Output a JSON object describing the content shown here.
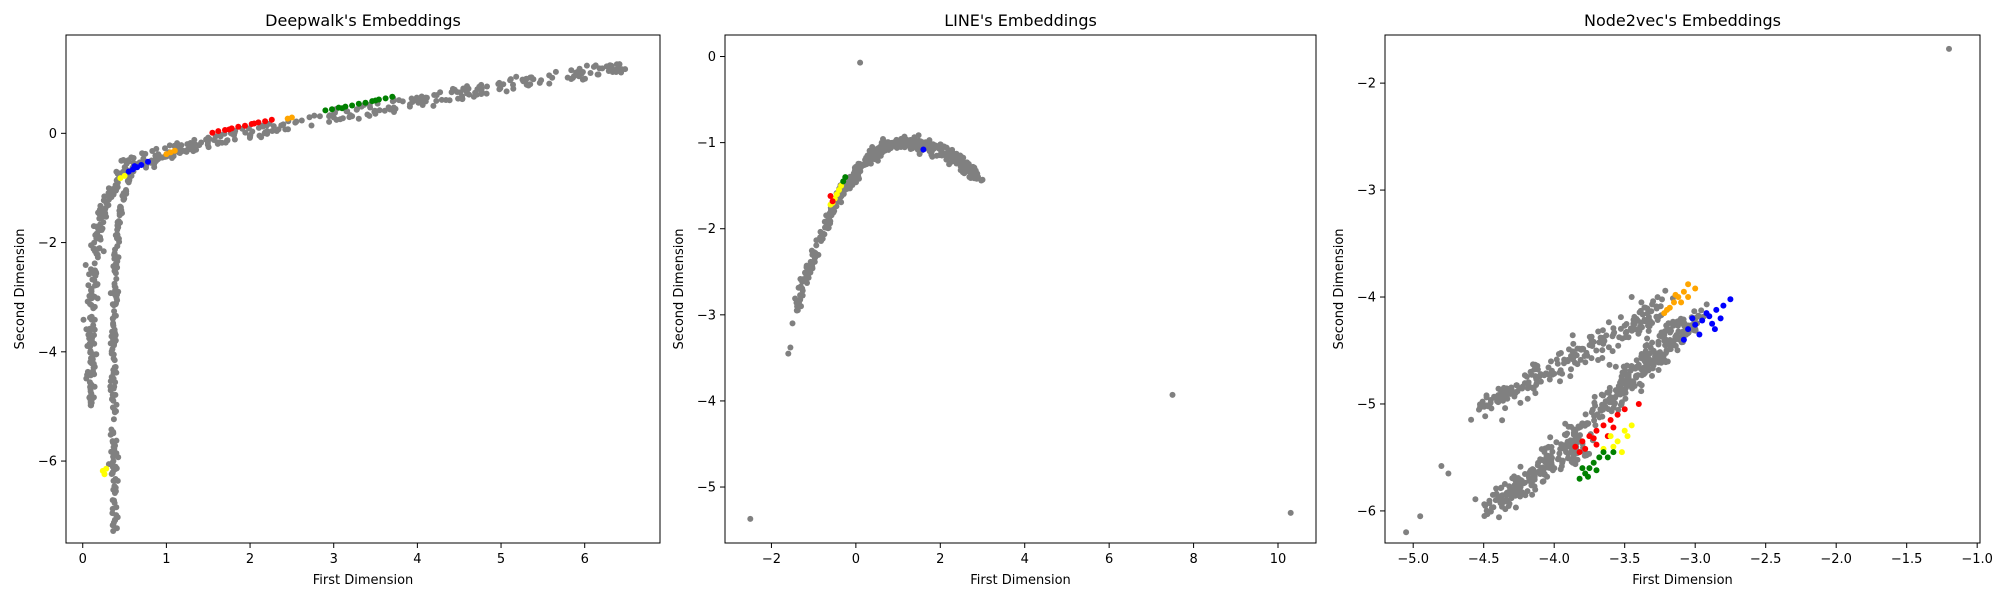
{
  "chart_data": [
    {
      "type": "scatter",
      "title": "Deepwalk's Embeddings",
      "xlabel": "First Dimension",
      "ylabel": "Second Dimension",
      "xlim": [
        -0.2,
        6.9
      ],
      "ylim": [
        -7.5,
        1.8
      ],
      "xticks": [
        0,
        1,
        2,
        3,
        4,
        5,
        6
      ],
      "yticks": [
        -6,
        -4,
        -2,
        0
      ],
      "grid": false,
      "series": [
        {
          "color": "#808080",
          "shape": "deepwalk-gray"
        },
        {
          "color": "#ff0000",
          "points": [
            [
              1.55,
              0.01
            ],
            [
              1.62,
              0.04
            ],
            [
              1.7,
              0.06
            ],
            [
              1.78,
              0.09
            ],
            [
              1.86,
              0.12
            ],
            [
              1.94,
              0.14
            ],
            [
              2.02,
              0.17
            ],
            [
              2.1,
              0.2
            ],
            [
              2.18,
              0.22
            ],
            [
              2.26,
              0.25
            ],
            [
              1.75,
              0.07
            ],
            [
              2.05,
              0.18
            ]
          ]
        },
        {
          "color": "#008000",
          "points": [
            [
              2.9,
              0.42
            ],
            [
              2.98,
              0.44
            ],
            [
              3.06,
              0.47
            ],
            [
              3.14,
              0.49
            ],
            [
              3.22,
              0.51
            ],
            [
              3.3,
              0.54
            ],
            [
              3.38,
              0.56
            ],
            [
              3.46,
              0.59
            ],
            [
              3.54,
              0.62
            ],
            [
              3.62,
              0.64
            ],
            [
              3.7,
              0.67
            ],
            [
              3.1,
              0.46
            ],
            [
              3.5,
              0.6
            ]
          ]
        },
        {
          "color": "#0000ff",
          "points": [
            [
              0.55,
              -0.7
            ],
            [
              0.6,
              -0.66
            ],
            [
              0.65,
              -0.62
            ],
            [
              0.7,
              -0.58
            ],
            [
              0.78,
              -0.52
            ],
            [
              0.62,
              -0.6
            ]
          ]
        },
        {
          "color": "#ffa500",
          "points": [
            [
              1.0,
              -0.38
            ],
            [
              1.05,
              -0.35
            ],
            [
              1.1,
              -0.32
            ],
            [
              2.45,
              0.27
            ],
            [
              2.5,
              0.29
            ]
          ]
        },
        {
          "color": "#ffff00",
          "points": [
            [
              0.24,
              -6.18
            ],
            [
              0.26,
              -6.24
            ],
            [
              0.28,
              -6.14
            ],
            [
              0.5,
              -0.78
            ],
            [
              0.45,
              -0.82
            ]
          ]
        }
      ]
    },
    {
      "type": "scatter",
      "title": "LINE's Embeddings",
      "xlabel": "First Dimension",
      "ylabel": "Second Dimension",
      "xlim": [
        -3.1,
        10.9
      ],
      "ylim": [
        -5.65,
        0.25
      ],
      "xticks": [
        -2,
        0,
        2,
        4,
        6,
        8,
        10
      ],
      "yticks": [
        -5,
        -4,
        -3,
        -2,
        -1,
        0
      ],
      "grid": false,
      "series": [
        {
          "color": "#808080",
          "shape": "line-gray",
          "outliers": [
            [
              0.1,
              -0.07
            ],
            [
              -2.5,
              -5.37
            ],
            [
              7.5,
              -3.93
            ],
            [
              10.3,
              -5.3
            ],
            [
              -1.6,
              -3.45
            ],
            [
              -1.55,
              -3.38
            ],
            [
              -1.4,
              -2.95
            ],
            [
              -1.3,
              -2.9
            ],
            [
              -1.5,
              -3.1
            ],
            [
              3.0,
              -1.43
            ]
          ]
        },
        {
          "color": "#ffff00",
          "points": [
            [
              -0.5,
              -1.65
            ],
            [
              -0.45,
              -1.6
            ],
            [
              -0.55,
              -1.7
            ],
            [
              -0.4,
              -1.55
            ],
            [
              -0.35,
              -1.5
            ],
            [
              -0.6,
              -1.72
            ]
          ]
        },
        {
          "color": "#ff0000",
          "points": [
            [
              -0.55,
              -1.68
            ],
            [
              -0.6,
              -1.62
            ]
          ]
        },
        {
          "color": "#008000",
          "points": [
            [
              -0.3,
              -1.45
            ],
            [
              -0.25,
              -1.4
            ]
          ]
        },
        {
          "color": "#0000ff",
          "points": [
            [
              1.6,
              -1.08
            ]
          ]
        }
      ]
    },
    {
      "type": "scatter",
      "title": "Node2vec's Embeddings",
      "xlabel": "First Dimension",
      "ylabel": "Second Dimension",
      "xlim": [
        -5.2,
        -0.98
      ],
      "ylim": [
        -6.3,
        -1.55
      ],
      "xticks": [
        -5.0,
        -4.5,
        -4.0,
        -3.5,
        -3.0,
        -2.5,
        -2.0,
        -1.5,
        -1.0
      ],
      "xticklabels": [
        "−5.0",
        "−4.5",
        "−4.0",
        "−3.5",
        "−3.0",
        "−2.5",
        "−2.0",
        "−1.5",
        "−1.0"
      ],
      "yticks": [
        -6,
        -5,
        -4,
        -3,
        -2
      ],
      "grid": false,
      "series": [
        {
          "color": "#808080",
          "shape": "node2vec-gray",
          "outliers": [
            [
              -1.2,
              -1.68
            ],
            [
              -5.05,
              -6.2
            ],
            [
              -4.95,
              -6.05
            ],
            [
              -4.75,
              -5.65
            ],
            [
              -4.8,
              -5.58
            ],
            [
              -3.45,
              -4.0
            ],
            [
              -3.35,
              -4.1
            ]
          ]
        },
        {
          "color": "#ffa500",
          "points": [
            [
              -3.05,
              -3.88
            ],
            [
              -3.08,
              -3.95
            ],
            [
              -3.12,
              -4.0
            ],
            [
              -3.15,
              -4.05
            ],
            [
              -3.18,
              -4.1
            ],
            [
              -3.1,
              -4.05
            ],
            [
              -3.05,
              -4.0
            ],
            [
              -3.2,
              -4.12
            ],
            [
              -3.14,
              -3.98
            ],
            [
              -3.0,
              -3.92
            ],
            [
              -3.22,
              -4.15
            ]
          ]
        },
        {
          "color": "#0000ff",
          "points": [
            [
              -2.75,
              -4.02
            ],
            [
              -2.8,
              -4.08
            ],
            [
              -2.85,
              -4.12
            ],
            [
              -2.9,
              -4.18
            ],
            [
              -2.95,
              -4.22
            ],
            [
              -3.0,
              -4.26
            ],
            [
              -3.05,
              -4.3
            ],
            [
              -2.88,
              -4.25
            ],
            [
              -2.92,
              -4.15
            ],
            [
              -2.82,
              -4.2
            ],
            [
              -3.02,
              -4.2
            ],
            [
              -2.97,
              -4.35
            ],
            [
              -3.08,
              -4.4
            ],
            [
              -2.86,
              -4.3
            ]
          ]
        },
        {
          "color": "#ff0000",
          "points": [
            [
              -3.85,
              -5.4
            ],
            [
              -3.8,
              -5.35
            ],
            [
              -3.75,
              -5.3
            ],
            [
              -3.7,
              -5.25
            ],
            [
              -3.65,
              -5.2
            ],
            [
              -3.6,
              -5.15
            ],
            [
              -3.55,
              -5.1
            ],
            [
              -3.78,
              -5.42
            ],
            [
              -3.7,
              -5.38
            ],
            [
              -3.62,
              -5.3
            ],
            [
              -3.5,
              -5.05
            ],
            [
              -3.72,
              -5.32
            ],
            [
              -3.82,
              -5.45
            ],
            [
              -3.58,
              -5.22
            ],
            [
              -3.4,
              -5.0
            ]
          ]
        },
        {
          "color": "#ffff00",
          "points": [
            [
              -3.55,
              -5.35
            ],
            [
              -3.6,
              -5.3
            ],
            [
              -3.5,
              -5.25
            ],
            [
              -3.45,
              -5.2
            ],
            [
              -3.65,
              -5.42
            ],
            [
              -3.52,
              -5.45
            ],
            [
              -3.58,
              -5.4
            ],
            [
              -3.48,
              -5.3
            ]
          ]
        },
        {
          "color": "#008000",
          "points": [
            [
              -3.82,
              -5.7
            ],
            [
              -3.78,
              -5.65
            ],
            [
              -3.75,
              -5.6
            ],
            [
              -3.72,
              -5.55
            ],
            [
              -3.8,
              -5.6
            ],
            [
              -3.68,
              -5.5
            ],
            [
              -3.65,
              -5.45
            ],
            [
              -3.76,
              -5.68
            ],
            [
              -3.7,
              -5.62
            ],
            [
              -3.62,
              -5.5
            ],
            [
              -3.58,
              -5.45
            ]
          ]
        }
      ]
    }
  ]
}
